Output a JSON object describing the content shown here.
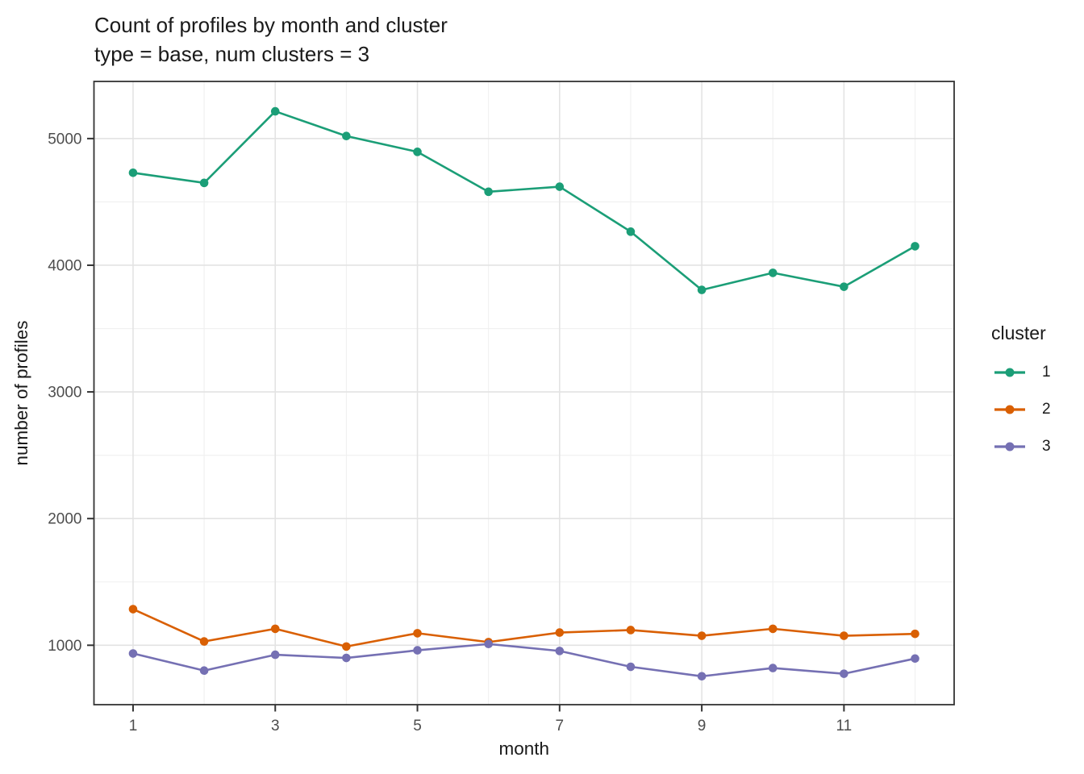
{
  "title": "Count of profiles by month and cluster",
  "subtitle": "type = base, num clusters = 3",
  "chart_data": {
    "type": "line",
    "title": "Count of profiles by month and cluster",
    "subtitle": "type = base, num clusters = 3",
    "xlabel": "month",
    "ylabel": "number of profiles",
    "x": [
      1,
      2,
      3,
      4,
      5,
      6,
      7,
      8,
      9,
      10,
      11,
      12
    ],
    "series": [
      {
        "name": "1",
        "color": "#1B9E77",
        "values": [
          4730,
          4650,
          5215,
          5020,
          4895,
          4580,
          4620,
          4265,
          3805,
          3940,
          3830,
          4150
        ]
      },
      {
        "name": "2",
        "color": "#D95F02",
        "values": [
          1285,
          1030,
          1130,
          990,
          1095,
          1025,
          1100,
          1120,
          1075,
          1130,
          1075,
          1090
        ]
      },
      {
        "name": "3",
        "color": "#7570B3",
        "values": [
          935,
          800,
          925,
          900,
          960,
          1010,
          955,
          830,
          755,
          820,
          775,
          895
        ]
      }
    ],
    "xticks": [
      1,
      3,
      5,
      7,
      9,
      11
    ],
    "yticks": [
      1000,
      2000,
      3000,
      4000,
      5000
    ],
    "x_minor_gridlines": [
      2,
      4,
      6,
      8,
      10,
      12
    ],
    "y_minor_gridlines": [
      1500,
      2500,
      3500,
      4500
    ],
    "xlim": [
      0.45,
      12.55
    ],
    "ylim": [
      531,
      5451
    ],
    "grid": "major and minor, light grey on white, black panel border",
    "legend": {
      "title": "cluster",
      "position": "right",
      "entries": [
        "1",
        "2",
        "3"
      ]
    }
  },
  "colors": {
    "cluster1": "#1B9E77",
    "cluster2": "#D95F02",
    "cluster3": "#7570B3",
    "grid_major": "#e3e3e3",
    "grid_minor": "#f0f0f0",
    "panel_border": "#333333",
    "tick_mark": "#333333",
    "tick_label": "#4d4d4d",
    "text": "#1a1a1a"
  }
}
